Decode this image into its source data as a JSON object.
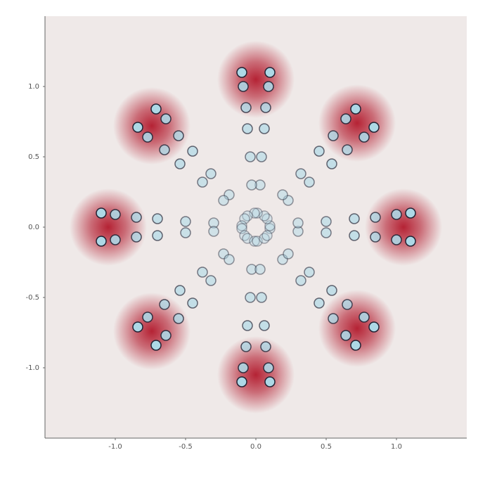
{
  "chart_data": {
    "type": "scatter",
    "xlim": [
      -1.5,
      1.5
    ],
    "ylim": [
      -1.5,
      1.5
    ],
    "xticks": [
      {
        "value": -1,
        "label": "-1.0"
      },
      {
        "value": -0.5,
        "label": "-0.5"
      },
      {
        "value": 0,
        "label": "0.0"
      },
      {
        "value": 0.5,
        "label": "0.5"
      },
      {
        "value": 1,
        "label": "1.0"
      }
    ],
    "yticks": [
      {
        "value": -1,
        "label": "-1.0"
      },
      {
        "value": -0.5,
        "label": "-0.5"
      },
      {
        "value": 0,
        "label": "0.0"
      },
      {
        "value": 0.5,
        "label": "0.5"
      },
      {
        "value": 1,
        "label": "1.0"
      }
    ],
    "color": "#add8e6",
    "density_color": "#b2182b",
    "density_centers": {
      "x": [
        1.05,
        0.72,
        0.0,
        -0.74,
        -1.05,
        -0.74,
        0.0,
        0.72
      ],
      "y": [
        0.0,
        0.74,
        1.05,
        0.72,
        0.0,
        -0.74,
        -1.05,
        -0.72
      ]
    },
    "trajectories": [
      {
        "x": [
          0.1,
          0.3,
          0.5,
          0.7,
          0.85,
          1.0,
          1.1
        ],
        "y": [
          -0.01,
          -0.03,
          -0.04,
          -0.06,
          -0.07,
          -0.09,
          -0.1
        ]
      },
      {
        "x": [
          0.1,
          0.3,
          0.5,
          0.7,
          0.85,
          1.0,
          1.1
        ],
        "y": [
          0.01,
          0.03,
          0.04,
          0.06,
          0.07,
          0.09,
          0.1
        ]
      },
      {
        "x": [
          0.08,
          0.23,
          0.38,
          0.54,
          0.65,
          0.77,
          0.84
        ],
        "y": [
          0.06,
          0.19,
          0.32,
          0.45,
          0.55,
          0.64,
          0.71
        ]
      },
      {
        "x": [
          0.06,
          0.19,
          0.32,
          0.45,
          0.55,
          0.64,
          0.71
        ],
        "y": [
          0.08,
          0.23,
          0.38,
          0.54,
          0.65,
          0.77,
          0.84
        ]
      },
      {
        "x": [
          0.01,
          0.03,
          0.04,
          0.06,
          0.07,
          0.09,
          0.1
        ],
        "y": [
          0.1,
          0.3,
          0.5,
          0.7,
          0.85,
          1.0,
          1.1
        ]
      },
      {
        "x": [
          -0.01,
          -0.03,
          -0.04,
          -0.06,
          -0.07,
          -0.09,
          -0.1
        ],
        "y": [
          0.1,
          0.3,
          0.5,
          0.7,
          0.85,
          1.0,
          1.1
        ]
      },
      {
        "x": [
          -0.06,
          -0.19,
          -0.32,
          -0.45,
          -0.55,
          -0.64,
          -0.71
        ],
        "y": [
          0.08,
          0.23,
          0.38,
          0.54,
          0.65,
          0.77,
          0.84
        ]
      },
      {
        "x": [
          -0.08,
          -0.23,
          -0.38,
          -0.54,
          -0.65,
          -0.77,
          -0.84
        ],
        "y": [
          0.06,
          0.19,
          0.32,
          0.45,
          0.55,
          0.64,
          0.71
        ]
      },
      {
        "x": [
          -0.1,
          -0.3,
          -0.5,
          -0.7,
          -0.85,
          -1.0,
          -1.1
        ],
        "y": [
          0.01,
          0.03,
          0.04,
          0.06,
          0.07,
          0.09,
          0.1
        ]
      },
      {
        "x": [
          -0.1,
          -0.3,
          -0.5,
          -0.7,
          -0.85,
          -1.0,
          -1.1
        ],
        "y": [
          -0.01,
          -0.03,
          -0.04,
          -0.06,
          -0.07,
          -0.09,
          -0.1
        ]
      },
      {
        "x": [
          -0.08,
          -0.23,
          -0.38,
          -0.54,
          -0.65,
          -0.77,
          -0.84
        ],
        "y": [
          -0.06,
          -0.19,
          -0.32,
          -0.45,
          -0.55,
          -0.64,
          -0.71
        ]
      },
      {
        "x": [
          -0.06,
          -0.19,
          -0.32,
          -0.45,
          -0.55,
          -0.64,
          -0.71
        ],
        "y": [
          -0.08,
          -0.23,
          -0.38,
          -0.54,
          -0.65,
          -0.77,
          -0.84
        ]
      },
      {
        "x": [
          -0.01,
          -0.03,
          -0.04,
          -0.06,
          -0.07,
          -0.09,
          -0.1
        ],
        "y": [
          -0.1,
          -0.3,
          -0.5,
          -0.7,
          -0.85,
          -1.0,
          -1.1
        ]
      },
      {
        "x": [
          0.01,
          0.03,
          0.04,
          0.06,
          0.07,
          0.09,
          0.1
        ],
        "y": [
          -0.1,
          -0.3,
          -0.5,
          -0.7,
          -0.85,
          -1.0,
          -1.1
        ]
      },
      {
        "x": [
          0.06,
          0.19,
          0.32,
          0.45,
          0.55,
          0.64,
          0.71
        ],
        "y": [
          -0.08,
          -0.23,
          -0.38,
          -0.54,
          -0.65,
          -0.77,
          -0.84
        ]
      },
      {
        "x": [
          0.08,
          0.23,
          0.38,
          0.54,
          0.65,
          0.77,
          0.84
        ],
        "y": [
          -0.06,
          -0.19,
          -0.32,
          -0.45,
          -0.55,
          -0.64,
          -0.71
        ]
      }
    ]
  }
}
